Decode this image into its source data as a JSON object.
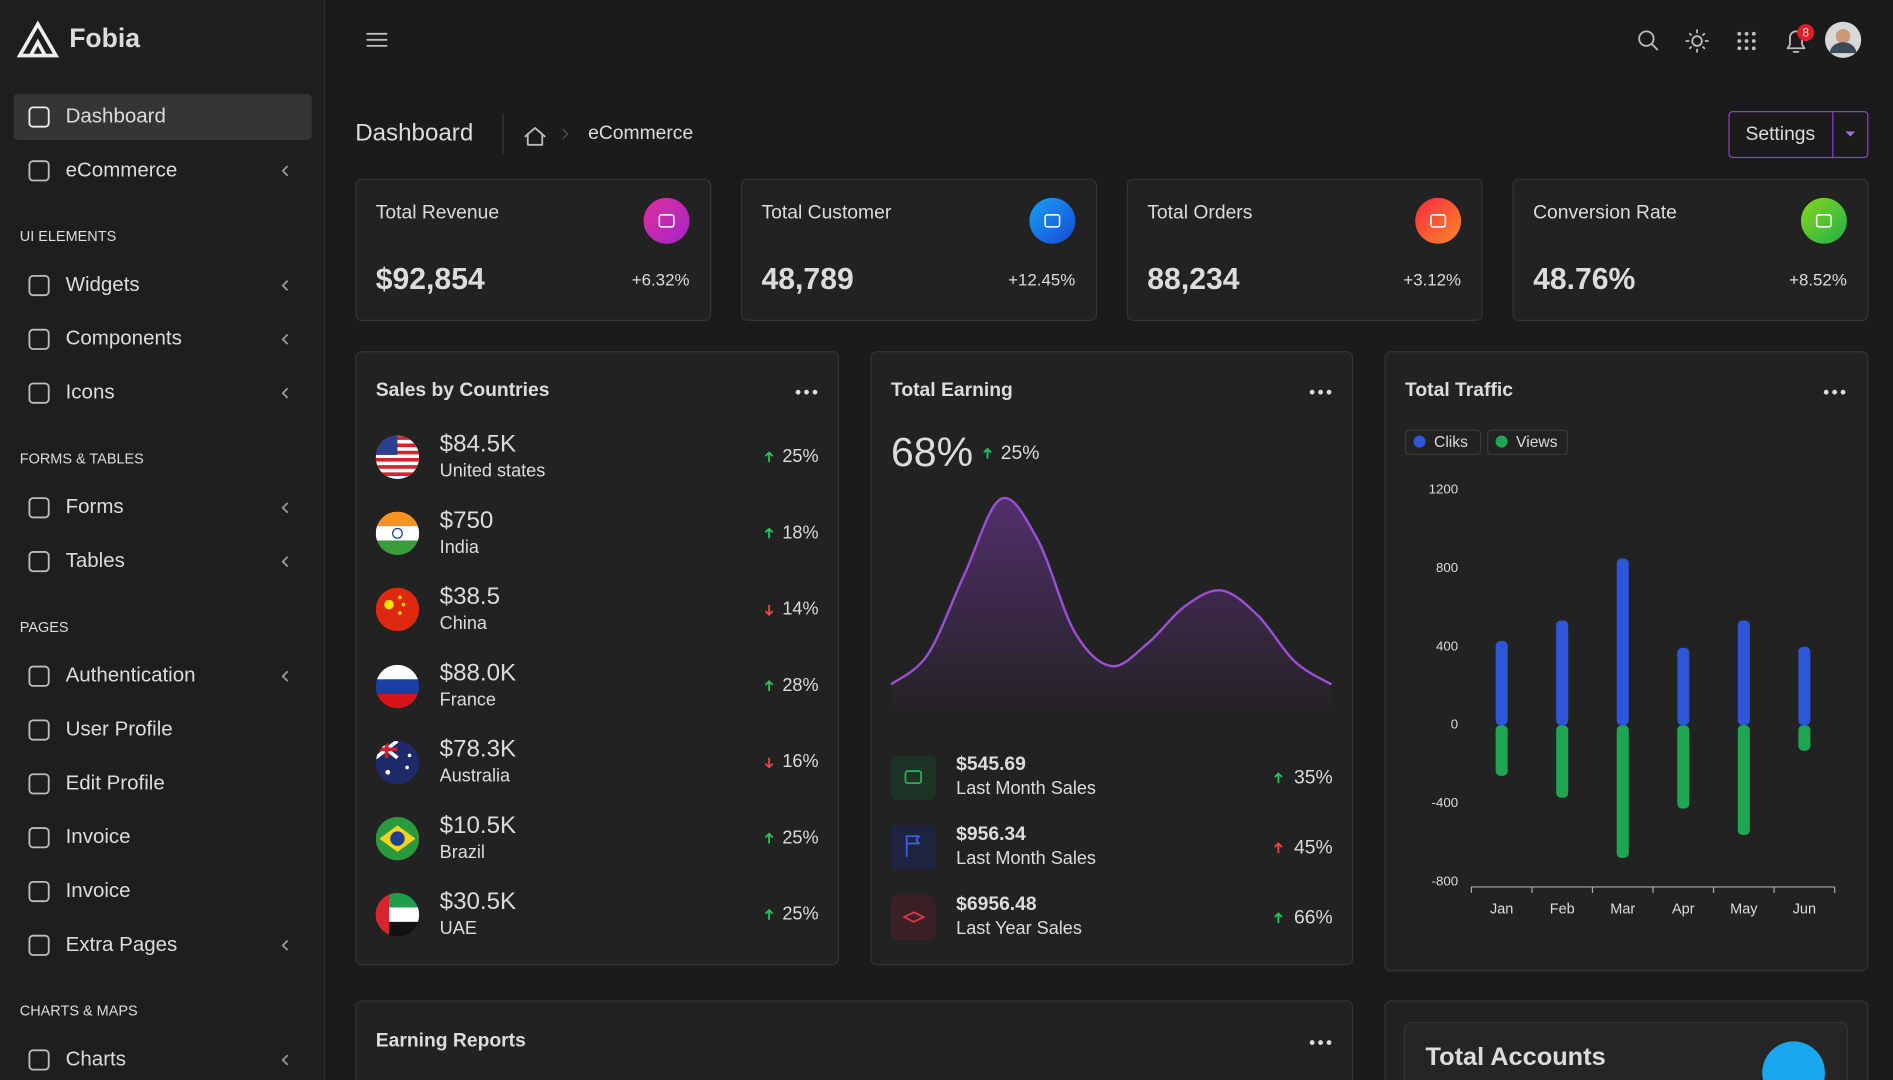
{
  "brand": "Fobia",
  "sidebar": {
    "groups": [
      {
        "items": [
          {
            "label": "Dashboard",
            "active": true
          },
          {
            "label": "eCommerce",
            "submenu": true
          }
        ]
      },
      {
        "label": "UI ELEMENTS",
        "items": [
          {
            "label": "Widgets",
            "submenu": true
          },
          {
            "label": "Components",
            "submenu": true
          },
          {
            "label": "Icons",
            "submenu": true
          }
        ]
      },
      {
        "label": "FORMS & TABLES",
        "items": [
          {
            "label": "Forms",
            "submenu": true
          },
          {
            "label": "Tables",
            "submenu": true
          }
        ]
      },
      {
        "label": "PAGES",
        "items": [
          {
            "label": "Authentication",
            "submenu": true
          },
          {
            "label": "User Profile"
          },
          {
            "label": "Edit Profile"
          },
          {
            "label": "Invoice"
          },
          {
            "label": "Invoice"
          },
          {
            "label": "Extra Pages",
            "submenu": true
          }
        ]
      },
      {
        "label": "CHARTS & MAPS",
        "items": [
          {
            "label": "Charts",
            "submenu": true
          }
        ]
      }
    ]
  },
  "notifications": 8,
  "breadcrumb": {
    "title": "Dashboard",
    "current": "eCommerce"
  },
  "settings_button": "Settings",
  "stats": [
    {
      "label": "Total Revenue",
      "value": "$92,854",
      "change": "+6.32%"
    },
    {
      "label": "Total Customer",
      "value": "48,789",
      "change": "+12.45%"
    },
    {
      "label": "Total Orders",
      "value": "88,234",
      "change": "+3.12%"
    },
    {
      "label": "Conversion Rate",
      "value": "48.76%",
      "change": "+8.52%"
    }
  ],
  "sales_by_countries": {
    "title": "Sales by Countries",
    "rows": [
      {
        "amount": "$84.5K",
        "country": "United states",
        "change": "25%",
        "direction": "up"
      },
      {
        "amount": "$750",
        "country": "India",
        "change": "18%",
        "direction": "up"
      },
      {
        "amount": "$38.5",
        "country": "China",
        "change": "14%",
        "direction": "down"
      },
      {
        "amount": "$88.0K",
        "country": "France",
        "change": "28%",
        "direction": "up"
      },
      {
        "amount": "$78.3K",
        "country": "Australia",
        "change": "16%",
        "direction": "down"
      },
      {
        "amount": "$10.5K",
        "country": "Brazil",
        "change": "25%",
        "direction": "up"
      },
      {
        "amount": "$30.5K",
        "country": "UAE",
        "change": "25%",
        "direction": "up"
      }
    ]
  },
  "total_earning": {
    "title": "Total Earning",
    "percent": "68%",
    "change": "25%",
    "chart_data": {
      "type": "area",
      "color": "#9b4fd6",
      "values": [
        12,
        25,
        60,
        93,
        75,
        35,
        20,
        30,
        46,
        53,
        42,
        22,
        12
      ],
      "ylim": [
        0,
        100
      ]
    },
    "rows": [
      {
        "amount": "$545.69",
        "label": "Last Month Sales",
        "change": "35%",
        "direction": "up"
      },
      {
        "amount": "$956.34",
        "label": "Last Month Sales",
        "change": "45%",
        "direction": "up-red"
      },
      {
        "amount": "$6956.48",
        "label": "Last Year Sales",
        "change": "66%",
        "direction": "up"
      }
    ]
  },
  "total_traffic": {
    "title": "Total Traffic",
    "chart_data": {
      "type": "bar",
      "categories": [
        "Jan",
        "Feb",
        "Mar",
        "Apr",
        "May",
        "Jun"
      ],
      "series": [
        {
          "name": "Cliks",
          "color": "#2f56d8",
          "values": [
            430,
            535,
            850,
            395,
            535,
            400
          ]
        },
        {
          "name": "Views",
          "color": "#1fa653",
          "values": [
            -258,
            -370,
            -677,
            -425,
            -560,
            -130
          ]
        }
      ],
      "ylim": [
        -800,
        1200
      ],
      "yticks": [
        -800,
        -400,
        0,
        400,
        800,
        1200
      ]
    }
  },
  "earning_reports": {
    "title": "Earning Reports"
  },
  "total_accounts": {
    "title": "Total Accounts"
  }
}
